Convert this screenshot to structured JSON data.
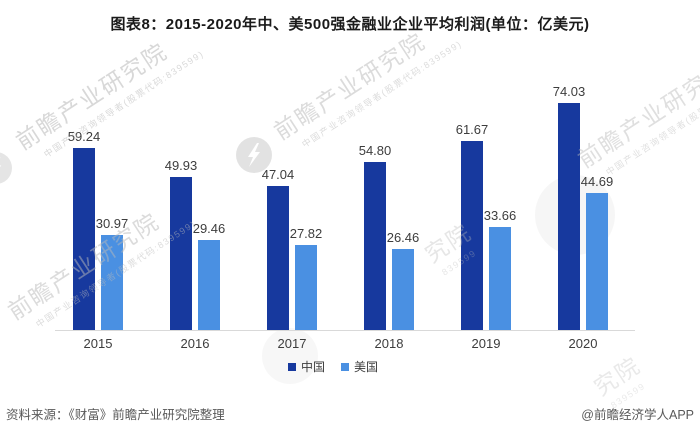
{
  "title": "图表8：2015-2020年中、美500强金融业企业平均利润(单位：亿美元)",
  "chart_data": {
    "type": "bar",
    "title": "2015-2020年中、美500强金融业企业平均利润",
    "unit": "亿美元",
    "categories": [
      "2015",
      "2016",
      "2017",
      "2018",
      "2019",
      "2020"
    ],
    "series": [
      {
        "name": "中国",
        "key": "china",
        "color": "#17399E",
        "values": [
          59.24,
          49.93,
          47.04,
          54.8,
          61.67,
          74.03
        ]
      },
      {
        "name": "美国",
        "key": "usa",
        "color": "#4A90E2",
        "values": [
          30.97,
          29.46,
          27.82,
          26.46,
          33.66,
          44.69
        ]
      }
    ],
    "xlabel": "",
    "ylabel": "",
    "ylim": [
      0,
      80
    ],
    "grid": false,
    "y_axis_visible": false,
    "legend_position": "bottom",
    "value_labels": true,
    "value_format": "2dp"
  },
  "footer": {
    "source": "资料来源：《财富》前瞻产业研究院整理",
    "credit": "@前瞻经济学人APP"
  },
  "watermark": {
    "text": "前瞻产业研究院",
    "subtext": "中国产业咨询领导者(股票代码:839599)",
    "fragment": "究院",
    "code": "839599"
  }
}
